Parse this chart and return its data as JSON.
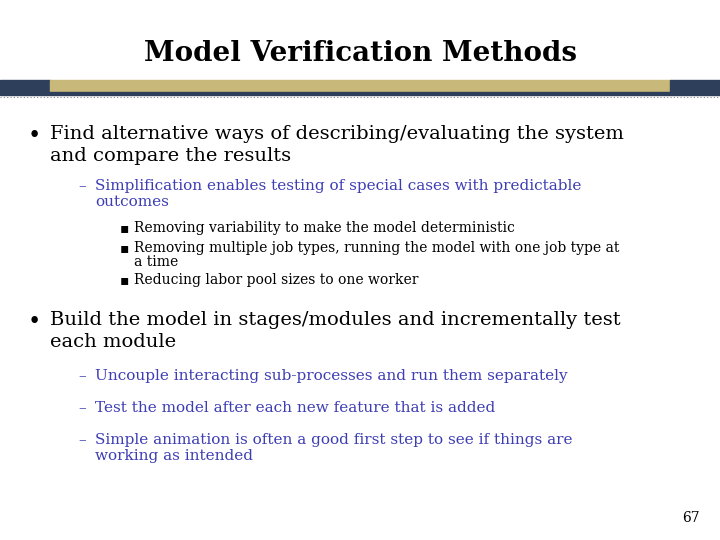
{
  "title": "Model Verification Methods",
  "title_fontsize": 20,
  "title_color": "#000000",
  "background_color": "#ffffff",
  "header_bar_navy": "#2e3f5c",
  "header_bar_tan": "#c8b97a",
  "header_bar_dark_line": "#2e3f5c",
  "header_dotted_color": "#888888",
  "bullet1_line1": "Find alternative ways of describing/evaluating the system",
  "bullet1_line2": "and compare the results",
  "bullet1_fontsize": 14,
  "bullet1_color": "#000000",
  "sub1_line1": "Simplification enables testing of special cases with predictable",
  "sub1_line2": "outcomes",
  "sub1_color": "#3d3db4",
  "sub1_fontsize": 11,
  "subsub1_items": [
    "Removing variability to make the model deterministic",
    "Removing multiple job types, running the model with one job type at\na time",
    "Reducing labor pool sizes to one worker"
  ],
  "subsub1_color": "#000000",
  "subsub1_fontsize": 10,
  "bullet2_line1": "Build the model in stages/modules and incrementally test",
  "bullet2_line2": "each module",
  "bullet2_fontsize": 14,
  "bullet2_color": "#000000",
  "sub2_items": [
    "Uncouple interacting sub-processes and run them separately",
    "Test the model after each new feature that is added",
    "Simple animation is often a good first step to see if things are\nworking as intended"
  ],
  "sub2_color": "#3d3db4",
  "sub2_fontsize": 11,
  "page_number": "67",
  "page_number_fontsize": 10,
  "page_number_color": "#000000"
}
